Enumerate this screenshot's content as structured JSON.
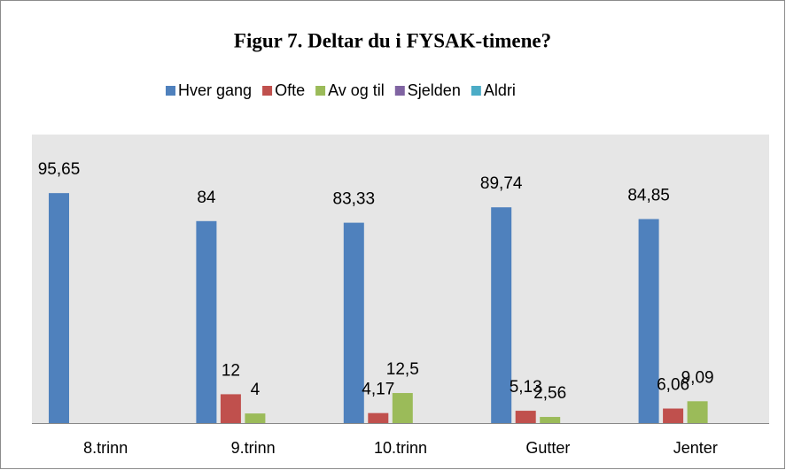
{
  "chart_data": {
    "type": "bar",
    "title": "Figur 7. Deltar du i FYSAK-timene?",
    "categories": [
      "8.trinn",
      "9.trinn",
      "10.trinn",
      "Gutter",
      "Jenter"
    ],
    "series": [
      {
        "name": "Hver gang",
        "color": "#4f81bd",
        "values": [
          95.65,
          84,
          83.33,
          89.74,
          84.85
        ],
        "value_labels": [
          "95,65",
          "84",
          "83,33",
          "89,74",
          "84,85"
        ]
      },
      {
        "name": "Ofte",
        "color": "#c0504d",
        "values": [
          null,
          12,
          4.17,
          5.13,
          6.06
        ],
        "value_labels": [
          null,
          "12",
          "4,17",
          "5,13",
          "6,06"
        ]
      },
      {
        "name": "Av og til",
        "color": "#9bbb59",
        "values": [
          null,
          4,
          12.5,
          2.56,
          9.09
        ],
        "value_labels": [
          null,
          "4",
          "12,5",
          "2,56",
          "9,09"
        ]
      },
      {
        "name": "Sjelden",
        "color": "#8064a2",
        "values": [
          null,
          null,
          null,
          null,
          null
        ]
      },
      {
        "name": "Aldri",
        "color": "#4bacc6",
        "values": [
          null,
          null,
          null,
          null,
          null
        ]
      }
    ],
    "ylim": [
      0,
      120
    ],
    "legend": "top"
  }
}
